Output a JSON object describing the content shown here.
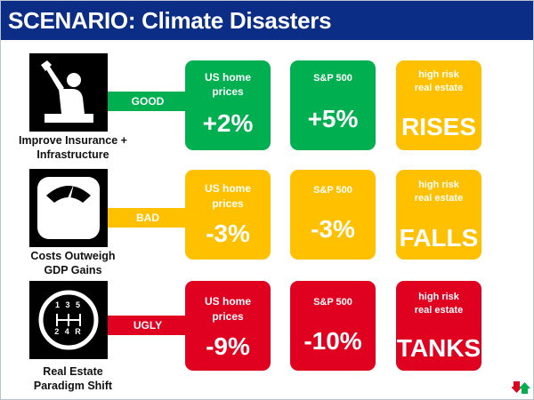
{
  "title": "SCENARIO: Climate Disasters",
  "colors": {
    "title_bar": "#0b2d86",
    "good": "#00b050",
    "bad": "#ffc000",
    "ugly": "#e00020"
  },
  "rows": [
    {
      "label_line1": "Improve Insurance +",
      "label_line2": "Infrastructure",
      "icon": "construction-worker-icon",
      "status": "GOOD",
      "home_header_1": "US home",
      "home_header_2": "prices",
      "home_value": "+2%",
      "sp_header": "S&P 500",
      "sp_value": "+5%",
      "re_header_1": "high risk",
      "re_header_2": "real estate",
      "re_value": "RISES"
    },
    {
      "label_line1": "Costs Outweigh",
      "label_line2": "GDP Gains",
      "icon": "scale-icon",
      "status": "BAD",
      "home_header_1": "US home",
      "home_header_2": "prices",
      "home_value": "-3%",
      "sp_header": "S&P 500",
      "sp_value": "-3%",
      "re_header_1": "high risk",
      "re_header_2": "real estate",
      "re_value": "FALLS"
    },
    {
      "label_line1": "Real Estate",
      "label_line2": "Paradigm Shift",
      "icon": "gear-shift-icon",
      "status": "UGLY",
      "home_header_1": "US home",
      "home_header_2": "prices",
      "home_value": "-9%",
      "sp_header": "S&P 500",
      "sp_value": "-10%",
      "re_header_1": "high risk",
      "re_header_2": "real estate",
      "re_value": "TANKS"
    }
  ],
  "gear_digits": {
    "top": "1 3 5",
    "bottom": "2 4 R"
  }
}
